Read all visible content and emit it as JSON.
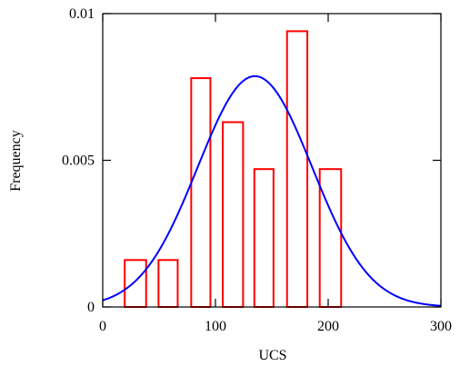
{
  "chart_data": {
    "type": "bar",
    "xlabel": "UCS",
    "ylabel": "Frequency",
    "xlim": [
      0,
      300
    ],
    "ylim": [
      0,
      0.01
    ],
    "x_ticks": [
      {
        "value": 0,
        "label": "0"
      },
      {
        "value": 100,
        "label": "100"
      },
      {
        "value": 200,
        "label": "200"
      },
      {
        "value": 300,
        "label": "300"
      }
    ],
    "y_ticks": [
      {
        "value": 0,
        "label": "0"
      },
      {
        "value": 0.005,
        "label": "0.005"
      },
      {
        "value": 0.01,
        "label": "0.01"
      }
    ],
    "grid": false,
    "histogram": {
      "color": "#ff0000",
      "bins": [
        {
          "x0": 19.5,
          "x1": 38.5,
          "value": 0.0016
        },
        {
          "x0": 49.5,
          "x1": 66.5,
          "value": 0.0016
        },
        {
          "x0": 78.5,
          "x1": 95.5,
          "value": 0.0078
        },
        {
          "x0": 106.5,
          "x1": 124.5,
          "value": 0.0063
        },
        {
          "x0": 134.5,
          "x1": 151.5,
          "value": 0.0047
        },
        {
          "x0": 163.5,
          "x1": 181.5,
          "value": 0.0094
        },
        {
          "x0": 192.5,
          "x1": 211.5,
          "value": 0.0047
        }
      ]
    },
    "curve": {
      "type": "line",
      "color": "#0000ff",
      "distribution": "normal",
      "mean": 135,
      "sd": 50.7
    }
  }
}
